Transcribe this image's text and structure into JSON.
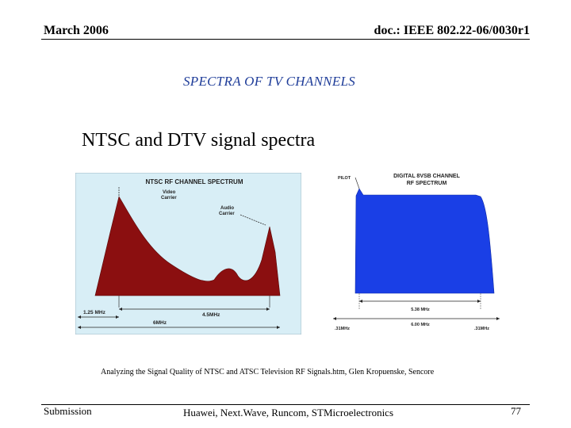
{
  "header": {
    "date": "March 2006",
    "doc": "doc.: IEEE 802.22-06/0030r1"
  },
  "slide": {
    "subtitle": "SPECTRA OF TV CHANNELS",
    "heading": "NTSC and DTV signal spectra",
    "caption": "Analyzing the Signal Quality of NTSC and ATSC Television RF Signals.htm, Glen Kropuenske, Sencore"
  },
  "ntsc_figure": {
    "title": "NTSC RF CHANNEL SPECTRUM",
    "video_carrier": "Video Carrier",
    "audio_carrier": "Audio Carrier",
    "dim_1": "1.25 MHz",
    "dim_2": "4.5MHz",
    "dim_3": "6MHz",
    "colors": {
      "panel": "#d8eef6",
      "fill": "#8b0f10"
    }
  },
  "dtv_figure": {
    "title_line1": "DIGITAL 8VSB CHANNEL",
    "title_line2": "RF SPECTRUM",
    "pilot": "PILOT",
    "dim_1": "5.38 MHz",
    "dim_2": "6.00 MHz",
    "edge_left": ".31MHz",
    "edge_right": ".31MHz",
    "colors": {
      "fill": "#1a3fe6"
    }
  },
  "footer": {
    "submission": "Submission",
    "authors": "Huawei, Next.Wave, Runcom, STMicroelectronics",
    "page": "77"
  }
}
